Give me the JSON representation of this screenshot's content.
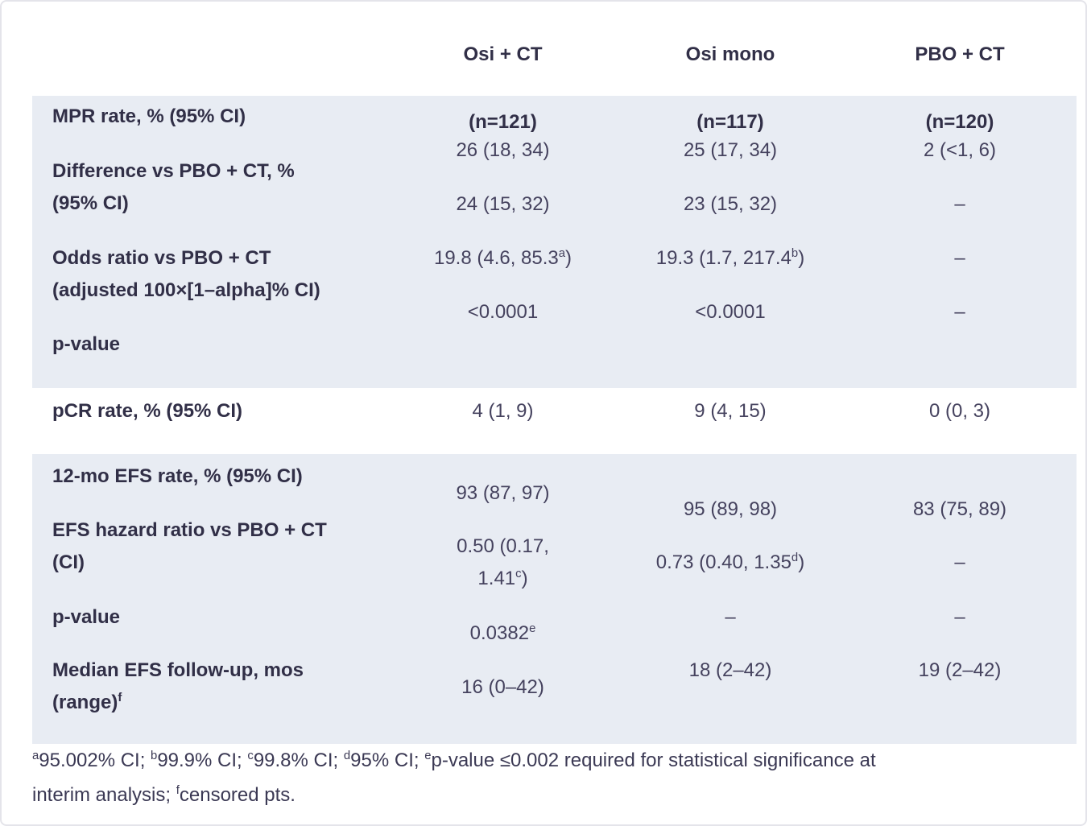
{
  "colors": {
    "shaded_section_bg": "#e8ecf3",
    "label_text": "#312f47",
    "value_text": "#45425e",
    "page_bg": "#ffffff"
  },
  "table": {
    "columns": [
      {
        "key": "osi-ct",
        "label": "Osi + CT",
        "n": "(n=121)"
      },
      {
        "key": "osi-mono",
        "label": "Osi mono",
        "n": "(n=117)"
      },
      {
        "key": "pbo-ct",
        "label": "PBO + CT",
        "n": "(n=120)"
      }
    ],
    "sections": [
      {
        "name": "mpr",
        "shaded": true,
        "rows": [
          {
            "label": "MPR rate, % (95% CI)",
            "values": [
              "26 (18, 34)",
              "25 (17, 34)",
              "2 (<1, 6)"
            ]
          },
          {
            "label": "Difference vs PBO + CT, %\n(95% CI)",
            "values": [
              "24 (15, 32)",
              "23 (15, 32)",
              "–"
            ]
          },
          {
            "label": "Odds ratio vs PBO + CT\n(adjusted 100×[1–alpha]% CI)",
            "values": [
              "19.8 (4.6, 85.3^a)",
              "19.3 (1.7, 217.4^b)",
              "–"
            ]
          },
          {
            "label": "p-value",
            "values": [
              "<0.0001",
              "<0.0001",
              "–"
            ]
          }
        ]
      },
      {
        "name": "pcr",
        "shaded": false,
        "rows": [
          {
            "label": "pCR rate, % (95% CI)",
            "values": [
              "4 (1, 9)",
              "9 (4, 15)",
              "0 (0, 3)"
            ]
          }
        ]
      },
      {
        "name": "efs",
        "shaded": true,
        "rows": [
          {
            "label": "12-mo EFS rate, % (95% CI)",
            "values": [
              "93 (87, 97)",
              "95 (89, 98)",
              "83 (75, 89)"
            ]
          },
          {
            "label": "EFS hazard ratio vs PBO + CT\n(CI)",
            "values": [
              "0.50 (0.17,\n1.41^c)",
              "0.73 (0.40, 1.35^d)",
              "–"
            ]
          },
          {
            "label": "p-value",
            "values": [
              "0.0382^e",
              "–",
              "–"
            ]
          },
          {
            "label": "Median EFS follow-up, mos\n(range)^f",
            "values": [
              "16 (0–42)",
              "18 (2–42)",
              "19 (2–42)"
            ]
          }
        ]
      }
    ],
    "footnote": "^a95.002% CI; ^b99.9% CI; ^c99.8% CI; ^d95% CI; ^ep-value ≤0.002 required for statistical significance at\ninterim analysis; ^fcensored pts."
  }
}
